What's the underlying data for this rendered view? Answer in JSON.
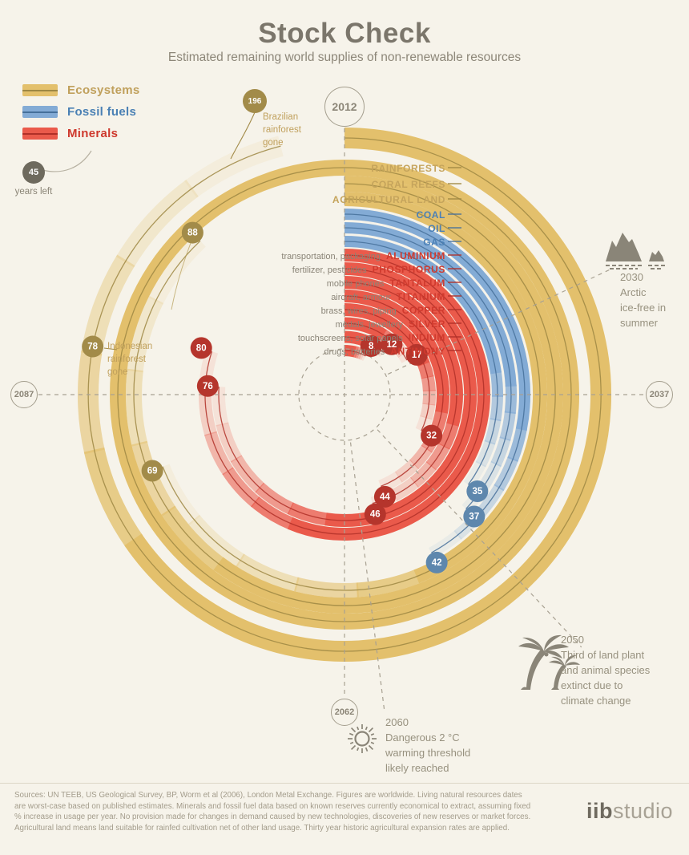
{
  "page": {
    "title": "Stock Check",
    "subtitle": "Estimated remaining world supplies of non-renewable resources",
    "background": "#f6f3ea"
  },
  "legend": {
    "items": [
      {
        "label": "Ecosystems",
        "swatch": "#e3c06c",
        "line": "#9e8743",
        "text_color": "#c0a05c"
      },
      {
        "label": "Fossil fuels",
        "swatch": "#83abd5",
        "line": "#46709a",
        "text_color": "#4a80b4"
      },
      {
        "label": "Minerals",
        "swatch": "#ea5a4b",
        "line": "#b03028",
        "text_color": "#ce382c"
      }
    ],
    "example": {
      "value": "45",
      "label": "years left"
    }
  },
  "chart_data": {
    "type": "radial-arc-timeline",
    "start_year": 2012,
    "years_per_revolution": 100,
    "unit": "years left from 2012",
    "axis_years": {
      "top": "2012",
      "right": "2037",
      "bottom": "2062",
      "left": "2087"
    },
    "categories": {
      "ecosystems": {
        "label": "Ecosystems",
        "band": "#e3c06c",
        "track": "#9e8743",
        "badge": "#a28b49",
        "label_color": "#c5a45c"
      },
      "fossil": {
        "label": "Fossil fuels",
        "band": "#83abd5",
        "track": "#46709a",
        "badge": "#5e87ad",
        "label_color": "#4b80b6"
      },
      "minerals": {
        "label": "Minerals",
        "band": "#ea5a4b",
        "track": "#b03028",
        "badge": "#b5352c",
        "label_color": "#d03a2e"
      }
    },
    "resources": [
      {
        "id": "rainforests",
        "name": "RAINFORESTS",
        "prefix": "",
        "category": "ecosystems",
        "years_left": 196
      },
      {
        "id": "coral-reefs",
        "name": "CORAL REEFS",
        "prefix": "",
        "category": "ecosystems",
        "years_left": 88
      },
      {
        "id": "agricultural-land",
        "name": "AGRICULTURAL LAND",
        "prefix": "",
        "category": "ecosystems",
        "years_left": 69
      },
      {
        "id": "coal",
        "name": "COAL",
        "prefix": "",
        "category": "fossil",
        "years_left": 42
      },
      {
        "id": "oil",
        "name": "OIL",
        "prefix": "",
        "category": "fossil",
        "years_left": 37
      },
      {
        "id": "gas",
        "name": "GAS",
        "prefix": "",
        "category": "fossil",
        "years_left": 35
      },
      {
        "id": "aluminium",
        "name": "ALUMINIUM",
        "prefix": "transportation, packaging",
        "category": "minerals",
        "years_left": 80
      },
      {
        "id": "phosphorus",
        "name": "PHOSPHORUS",
        "prefix": "fertilizer, pesticides",
        "category": "minerals",
        "years_left": 76
      },
      {
        "id": "tantalum",
        "name": "TANTALUM",
        "prefix": "mobile phones",
        "category": "minerals",
        "years_left": 46
      },
      {
        "id": "titanium",
        "name": "TITANIUM",
        "prefix": "aircraft, armour",
        "category": "minerals",
        "years_left": 44
      },
      {
        "id": "copper",
        "name": "COPPER",
        "prefix": "brass, wires, piping",
        "category": "minerals",
        "years_left": 32
      },
      {
        "id": "silver",
        "name": "SILVER",
        "prefix": "medals, jewellery",
        "category": "minerals",
        "years_left": 17
      },
      {
        "id": "indium",
        "name": "INDIUM",
        "prefix": "touchscreens, solar panels",
        "category": "minerals",
        "years_left": 12
      },
      {
        "id": "antimony",
        "name": "ANTIMONY",
        "prefix": "drugs, batteries",
        "category": "minerals",
        "years_left": 8
      }
    ],
    "rainforest_markers": [
      {
        "value": "78",
        "lines": [
          "Indonesian",
          "rainforest",
          "gone"
        ]
      },
      {
        "value": "196",
        "lines": [
          "Brazilian",
          "rainforest",
          "gone"
        ]
      }
    ],
    "annotations": [
      {
        "year": "2030",
        "icon": "iceberg-icon",
        "lines": [
          "Arctic",
          "ice-free in",
          "summer"
        ]
      },
      {
        "year": "2050",
        "icon": "palm-trees-icon",
        "lines": [
          "Third of land plant",
          "and animal species",
          "extinct due to",
          "climate change"
        ]
      },
      {
        "year": "2060",
        "icon": "sun-icon",
        "lines": [
          "Dangerous 2 °C",
          "warming threshold",
          "likely reached"
        ]
      }
    ]
  },
  "footer": {
    "sources": "Sources: UN TEEB, US Geological Survey, BP, Worm et al (2006), London Metal Exchange. Figures are worldwide. Living natural resources dates are worst-case based on published estimates. Minerals and fossil fuel data based on known reserves currently economical to extract, assuming fixed % increase in usage per year. No provision made for changes in demand caused by new technologies, discoveries of new reserves or market forces. Agricultural land means land suitable for rainfed cultivation net of other land usage. Thirty year historic agricultural expansion rates are applied.",
    "logo_bold": "iib",
    "logo_light": "studio"
  }
}
